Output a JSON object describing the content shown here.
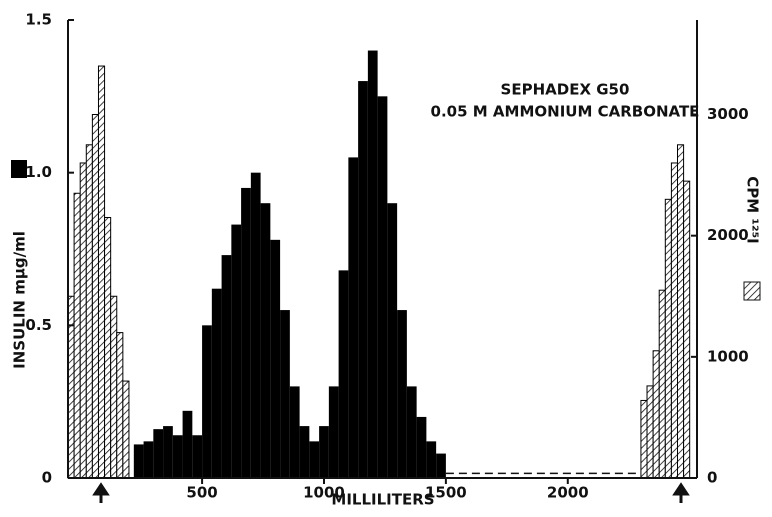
{
  "chart_data": {
    "type": "histogram",
    "xlabel": "MILLILITERS",
    "ylabel": "INSULIN mμg/ml",
    "y2label": "CPM ¹²⁵I",
    "annotations": [
      "SEPHADEX G50",
      "0.05 M AMMONIUM CARBONATE"
    ],
    "xlim": [
      -50,
      2530
    ],
    "xticks": [
      500,
      1000,
      1500,
      2000
    ],
    "ylim": [
      0,
      1.5
    ],
    "yticks": [
      0,
      0.5,
      {
        "value": 1.0,
        "label": "1.0"
      },
      1.5
    ],
    "y2lim": [
      0,
      3780
    ],
    "y2ticks": [
      0,
      1000,
      2000,
      3000
    ],
    "series": [
      {
        "color": "#000000",
        "fill": "solid",
        "bins": [
          220,
          260,
          300,
          340,
          380,
          420,
          460,
          500,
          540,
          580,
          620,
          660,
          700,
          740,
          780,
          820,
          860,
          900,
          940,
          980,
          1020,
          1060,
          1100,
          1140,
          1180,
          1220,
          1260,
          1300,
          1340,
          1380,
          1420,
          1460,
          1500
        ],
        "values": [
          0.11,
          0.12,
          0.16,
          0.17,
          0.14,
          0.22,
          0.14,
          0.5,
          0.62,
          0.73,
          0.83,
          0.95,
          1.0,
          0.9,
          0.78,
          0.55,
          0.3,
          0.17,
          0.12,
          0.17,
          0.3,
          0.68,
          1.05,
          1.3,
          1.4,
          1.25,
          0.9,
          0.55,
          0.3,
          0.2,
          0.12,
          0.08
        ]
      },
      {
        "color": "#000000",
        "fill": "hatch",
        "axis": "y2",
        "bins": [
          -50,
          -25,
          0,
          25,
          50,
          75,
          100,
          125,
          150,
          175,
          200
        ],
        "values": [
          1500,
          2350,
          2600,
          2750,
          3000,
          3400,
          2150,
          1500,
          1200,
          800
        ]
      },
      {
        "color": "#000000",
        "fill": "hatch",
        "axis": "y2",
        "bins": [
          2300,
          2325,
          2350,
          2375,
          2400,
          2425,
          2450,
          2475,
          2500
        ],
        "values": [
          640,
          760,
          1050,
          1550,
          2300,
          2600,
          2750,
          2450
        ]
      }
    ],
    "dashed_line": {
      "x": [
        1500,
        2300
      ],
      "values": [
        0.015,
        0.015
      ]
    }
  }
}
